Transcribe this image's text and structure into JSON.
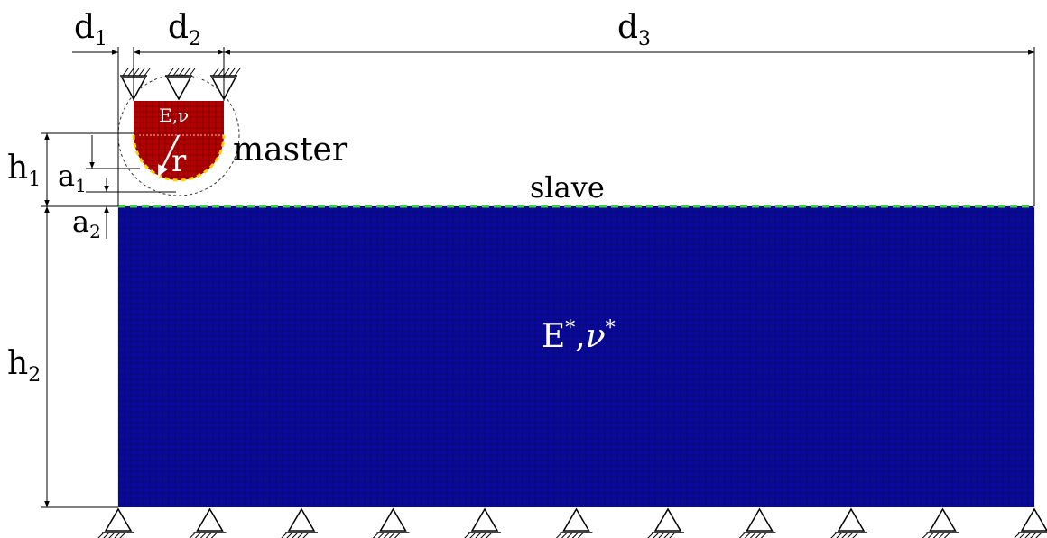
{
  "labels": {
    "d1": {
      "base": "d",
      "sub": "1"
    },
    "d2": {
      "base": "d",
      "sub": "2"
    },
    "d3": {
      "base": "d",
      "sub": "3"
    },
    "h1": {
      "base": "h",
      "sub": "1"
    },
    "h2": {
      "base": "h",
      "sub": "2"
    },
    "a1": {
      "base": "a",
      "sub": "1"
    },
    "a2": {
      "base": "a",
      "sub": "2"
    },
    "master": "master",
    "slave": "slave",
    "radius": "r",
    "indenter_props": "E,ν",
    "substrate_props": {
      "e": "E",
      "nu": "ν",
      "star": "*",
      "comma": ","
    }
  },
  "colors": {
    "indenter": "#b30000",
    "substrate": "#0a0a9a",
    "master_edge": "#ffd400",
    "slave_edge": "#3cd63c",
    "mesh_line": "#000000"
  }
}
